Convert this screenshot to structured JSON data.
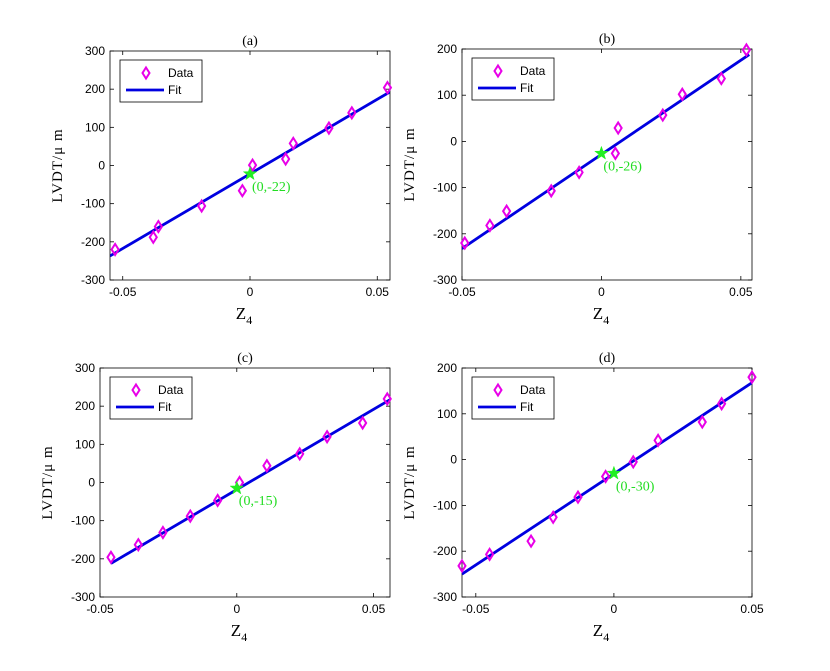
{
  "colors": {
    "data_marker": "#e800e8",
    "fit_line": "#0000e0",
    "star": "#22ee22",
    "annotation": "#22dd22",
    "axis": "#000000"
  },
  "chart_data": [
    {
      "type": "scatter",
      "title": "(a)",
      "xlabel": "Z_4",
      "ylabel": "LVDT/μ m",
      "xlim": [
        -0.055,
        0.055
      ],
      "ylim": [
        -300,
        300
      ],
      "xticks": [
        -0.05,
        0,
        0.05
      ],
      "xtick_labels": [
        "-0.05",
        "0",
        "0.05"
      ],
      "yticks": [
        -300,
        -200,
        -100,
        0,
        100,
        200,
        300
      ],
      "ytick_labels": [
        "-300",
        "-200",
        "-100",
        "0",
        "100",
        "200",
        "300"
      ],
      "legend": {
        "position": "top-left",
        "entries": [
          "Data",
          "Fit"
        ]
      },
      "series": [
        {
          "name": "Data",
          "style": "diamond",
          "x": [
            -0.053,
            -0.038,
            -0.036,
            -0.019,
            -0.003,
            0.001,
            0.014,
            0.017,
            0.031,
            0.04,
            0.054
          ],
          "y": [
            -220,
            -188,
            -160,
            -106,
            -66,
            1,
            17,
            58,
            98,
            138,
            204
          ]
        },
        {
          "name": "Fit",
          "style": "line",
          "x": [
            -0.055,
            0.055
          ],
          "y": [
            -237,
            193
          ]
        }
      ],
      "annotation": {
        "x": 0,
        "y": -22,
        "label": "(0,-22)"
      }
    },
    {
      "type": "scatter",
      "title": "(b)",
      "xlabel": "Z_4",
      "ylabel": "LVDT/μ m",
      "xlim": [
        -0.05,
        0.054
      ],
      "ylim": [
        -300,
        200
      ],
      "xticks": [
        -0.05,
        0,
        0.05
      ],
      "xtick_labels": [
        "-0.05",
        "0",
        "0.05"
      ],
      "yticks": [
        -300,
        -200,
        -100,
        0,
        100,
        200
      ],
      "ytick_labels": [
        "-300",
        "-200",
        "-100",
        "0",
        "100",
        "200"
      ],
      "legend": {
        "position": "top-left",
        "entries": [
          "Data",
          "Fit"
        ]
      },
      "series": [
        {
          "name": "Data",
          "style": "diamond",
          "x": [
            -0.049,
            -0.04,
            -0.034,
            -0.018,
            -0.008,
            0.005,
            0.006,
            0.022,
            0.029,
            0.043,
            0.052
          ],
          "y": [
            -220,
            -182,
            -151,
            -107,
            -67,
            -26,
            29,
            57,
            102,
            136,
            198
          ]
        },
        {
          "name": "Fit",
          "style": "line",
          "x": [
            -0.05,
            0.053
          ],
          "y": [
            -232,
            188
          ]
        }
      ],
      "annotation": {
        "x": 0,
        "y": -26,
        "label": "(0,-26)"
      }
    },
    {
      "type": "scatter",
      "title": "(c)",
      "xlabel": "Z_4",
      "ylabel": "LVDT/μ m",
      "xlim": [
        -0.05,
        0.056
      ],
      "ylim": [
        -300,
        300
      ],
      "xticks": [
        -0.05,
        0,
        0.05
      ],
      "xtick_labels": [
        "-0.05",
        "0",
        "0.05"
      ],
      "yticks": [
        -300,
        -200,
        -100,
        0,
        100,
        200,
        300
      ],
      "ytick_labels": [
        "-300",
        "-200",
        "-100",
        "0",
        "100",
        "200",
        "300"
      ],
      "legend": {
        "position": "top-left",
        "entries": [
          "Data",
          "Fit"
        ]
      },
      "series": [
        {
          "name": "Data",
          "style": "diamond",
          "x": [
            -0.046,
            -0.036,
            -0.027,
            -0.017,
            -0.007,
            0.001,
            0.011,
            0.023,
            0.033,
            0.046,
            0.055
          ],
          "y": [
            -196,
            -163,
            -131,
            -88,
            -47,
            0,
            44,
            75,
            120,
            156,
            219
          ]
        },
        {
          "name": "Fit",
          "style": "line",
          "x": [
            -0.046,
            0.056
          ],
          "y": [
            -212,
            217
          ]
        }
      ],
      "annotation": {
        "x": 0,
        "y": -15,
        "label": "(0,-15)"
      }
    },
    {
      "type": "scatter",
      "title": "(d)",
      "xlabel": "Z_4",
      "ylabel": "LVDT/μ m",
      "xlim": [
        -0.055,
        0.05
      ],
      "ylim": [
        -300,
        200
      ],
      "xticks": [
        -0.05,
        0,
        0.05
      ],
      "xtick_labels": [
        "-0.05",
        "0",
        "0.05"
      ],
      "yticks": [
        -300,
        -200,
        -100,
        0,
        100,
        200
      ],
      "ytick_labels": [
        "-300",
        "-200",
        "-100",
        "0",
        "100",
        "200"
      ],
      "legend": {
        "position": "top-left",
        "entries": [
          "Data",
          "Fit"
        ]
      },
      "series": [
        {
          "name": "Data",
          "style": "diamond",
          "x": [
            -0.055,
            -0.045,
            -0.03,
            -0.022,
            -0.013,
            -0.003,
            0.007,
            0.016,
            0.032,
            0.039,
            0.05
          ],
          "y": [
            -232,
            -207,
            -178,
            -126,
            -82,
            -37,
            -5,
            42,
            82,
            122,
            180
          ]
        },
        {
          "name": "Fit",
          "style": "line",
          "x": [
            -0.055,
            0.05
          ],
          "y": [
            -250,
            168
          ]
        }
      ],
      "annotation": {
        "x": 0,
        "y": -30,
        "label": "(0,-30)"
      }
    }
  ]
}
